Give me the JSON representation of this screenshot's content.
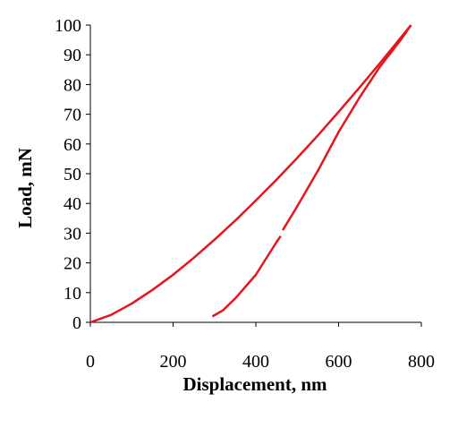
{
  "chart_data": {
    "type": "line",
    "xlabel": "Displacement, nm",
    "ylabel": "Load, mN",
    "xlim": [
      0,
      800
    ],
    "xticks": [
      0,
      200,
      400,
      600,
      800
    ],
    "ylim": [
      0,
      100
    ],
    "yticks": [
      0,
      10,
      20,
      30,
      40,
      50,
      60,
      70,
      80,
      90,
      100
    ],
    "series": [
      {
        "color": "#e8141b",
        "x": [
          0,
          50,
          100,
          150,
          200,
          250,
          300,
          350,
          400,
          450,
          500,
          550,
          600,
          650,
          700,
          750,
          775
        ],
        "values": [
          0,
          2.5,
          6.3,
          10.9,
          16.0,
          21.7,
          27.8,
          34.2,
          41.0,
          48.0,
          55.3,
          62.9,
          70.8,
          78.9,
          87.2,
          95.7,
          100
        ]
      },
      {
        "color": "#e8141b",
        "x": [
          295,
          320,
          350,
          400,
          450,
          460,
          462,
          465,
          500,
          550,
          600,
          650,
          700,
          750,
          775
        ],
        "values": [
          2,
          4,
          8,
          16,
          27,
          29,
          null,
          31,
          39,
          51,
          64,
          75.5,
          86,
          95,
          100
        ]
      }
    ]
  }
}
